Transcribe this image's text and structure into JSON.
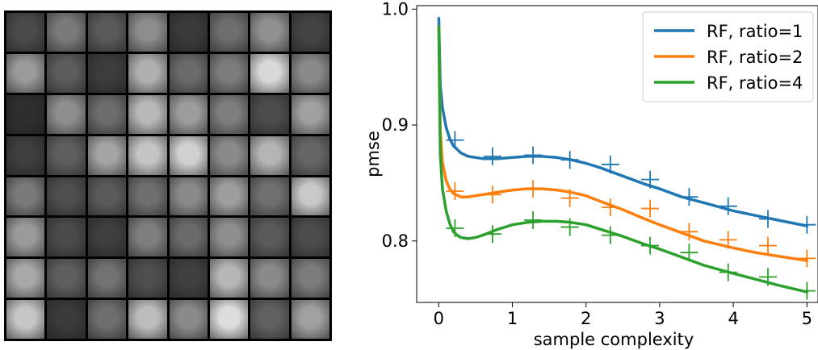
{
  "image_grid": {
    "rows": 8,
    "cols": 8,
    "thumbnails": [
      [
        "#4a4a4a",
        "#7a7a7a",
        "#5a5a5a",
        "#8c8c8c",
        "#3a3a3a",
        "#6e6e6e",
        "#909090",
        "#444444"
      ],
      [
        "#9a9a9a",
        "#5c5c5c",
        "#3c3c3c",
        "#b0b0b0",
        "#6a6a6a",
        "#7c7c7c",
        "#d8d8d8",
        "#8a8a8a"
      ],
      [
        "#2e2e2e",
        "#8e8e8e",
        "#6c6c6c",
        "#b8b8b8",
        "#9c9c9c",
        "#7e7e7e",
        "#4c4c4c",
        "#a0a0a0"
      ],
      [
        "#3e3e3e",
        "#5e5e5e",
        "#a4a4a4",
        "#c4c4c4",
        "#d0d0d0",
        "#8a8a8a",
        "#b4b4b4",
        "#666666"
      ],
      [
        "#7a7a7a",
        "#4e4e4e",
        "#5a5a5a",
        "#6e6e6e",
        "#8a8a8a",
        "#9e9e9e",
        "#707070",
        "#c8c8c8"
      ],
      [
        "#9a9a9a",
        "#4a4a4a",
        "#3e3e3e",
        "#7e7e7e",
        "#6a6a6a",
        "#8e8e8e",
        "#5a5a5a",
        "#4c4c4c"
      ],
      [
        "#a8a8a8",
        "#5e5e5e",
        "#727272",
        "#4e4e4e",
        "#404040",
        "#b6b6b6",
        "#8a8a8a",
        "#7c7c7c"
      ],
      [
        "#c6c6c6",
        "#3a3a3a",
        "#6e6e6e",
        "#bcbcbc",
        "#8a8a8a",
        "#dcdcdc",
        "#606060",
        "#a0a0a0"
      ]
    ]
  },
  "chart_data": {
    "type": "line",
    "xlabel": "sample complexity",
    "ylabel": "pmse",
    "xlim": [
      -0.3,
      5.15
    ],
    "ylim": [
      0.747,
      1.003
    ],
    "xticks": [
      0,
      1,
      2,
      3,
      4,
      5
    ],
    "yticks": [
      0.8,
      0.9,
      1.0
    ],
    "xtick_labels": [
      "0",
      "1",
      "2",
      "3",
      "4",
      "5"
    ],
    "ytick_labels": [
      "0.8",
      "0.9",
      "1.0"
    ],
    "grid": false,
    "legend_position": "top-right",
    "series": [
      {
        "name": "RF, ratio=1",
        "color": "#1f77b4",
        "curve_x": [
          0,
          0.02,
          0.05,
          0.1,
          0.15,
          0.2,
          0.3,
          0.4,
          0.5,
          0.6,
          0.8,
          1.0,
          1.2,
          1.4,
          1.6,
          1.8,
          2.0,
          2.2,
          2.5,
          2.8,
          3.0,
          3.3,
          3.6,
          4.0,
          4.3,
          4.6,
          5.0
        ],
        "curve_y": [
          0.992,
          0.935,
          0.915,
          0.898,
          0.888,
          0.882,
          0.876,
          0.873,
          0.872,
          0.871,
          0.871,
          0.872,
          0.873,
          0.873,
          0.872,
          0.87,
          0.867,
          0.863,
          0.856,
          0.849,
          0.845,
          0.838,
          0.833,
          0.826,
          0.822,
          0.818,
          0.813
        ],
        "samples_x": [
          0.22,
          0.73,
          1.28,
          1.78,
          2.33,
          2.87,
          3.4,
          3.93,
          4.47,
          5.0
        ],
        "samples_y": [
          0.887,
          0.873,
          0.874,
          0.87,
          0.866,
          0.853,
          0.838,
          0.83,
          0.819,
          0.814
        ]
      },
      {
        "name": "RF, ratio=2",
        "color": "#ff7f0e",
        "curve_x": [
          0,
          0.02,
          0.05,
          0.1,
          0.15,
          0.2,
          0.3,
          0.4,
          0.5,
          0.6,
          0.8,
          1.0,
          1.2,
          1.4,
          1.6,
          1.8,
          2.0,
          2.2,
          2.5,
          2.8,
          3.0,
          3.3,
          3.6,
          4.0,
          4.3,
          4.6,
          5.0
        ],
        "curve_y": [
          0.985,
          0.895,
          0.868,
          0.852,
          0.845,
          0.841,
          0.838,
          0.838,
          0.839,
          0.84,
          0.842,
          0.844,
          0.845,
          0.845,
          0.844,
          0.842,
          0.839,
          0.834,
          0.827,
          0.819,
          0.814,
          0.807,
          0.8,
          0.794,
          0.79,
          0.787,
          0.783
        ]
      },
      {
        "name": "RF, ratio=4",
        "color": "#2ca02c",
        "curve_x": [
          0,
          0.02,
          0.05,
          0.1,
          0.15,
          0.2,
          0.25,
          0.3,
          0.4,
          0.5,
          0.6,
          0.8,
          1.0,
          1.2,
          1.4,
          1.6,
          1.8,
          2.0,
          2.2,
          2.5,
          2.8,
          3.0,
          3.3,
          3.6,
          4.0,
          4.3,
          4.6,
          5.0
        ],
        "curve_y": [
          0.985,
          0.875,
          0.845,
          0.826,
          0.815,
          0.808,
          0.805,
          0.803,
          0.802,
          0.803,
          0.805,
          0.81,
          0.814,
          0.816,
          0.817,
          0.817,
          0.816,
          0.814,
          0.81,
          0.804,
          0.797,
          0.793,
          0.786,
          0.779,
          0.772,
          0.767,
          0.762,
          0.756
        ]
      }
    ],
    "samples": {
      "ratio2": {
        "x": [
          0.22,
          0.73,
          1.28,
          1.78,
          2.33,
          2.87,
          3.4,
          3.93,
          4.47,
          5.0
        ],
        "y": [
          0.843,
          0.84,
          0.845,
          0.837,
          0.829,
          0.828,
          0.808,
          0.801,
          0.796,
          0.785
        ]
      },
      "ratio4": {
        "x": [
          0.22,
          0.73,
          1.28,
          1.78,
          2.33,
          2.87,
          3.4,
          3.93,
          4.47,
          5.0
        ],
        "y": [
          0.811,
          0.806,
          0.818,
          0.812,
          0.805,
          0.796,
          0.79,
          0.773,
          0.769,
          0.757
        ]
      }
    }
  }
}
